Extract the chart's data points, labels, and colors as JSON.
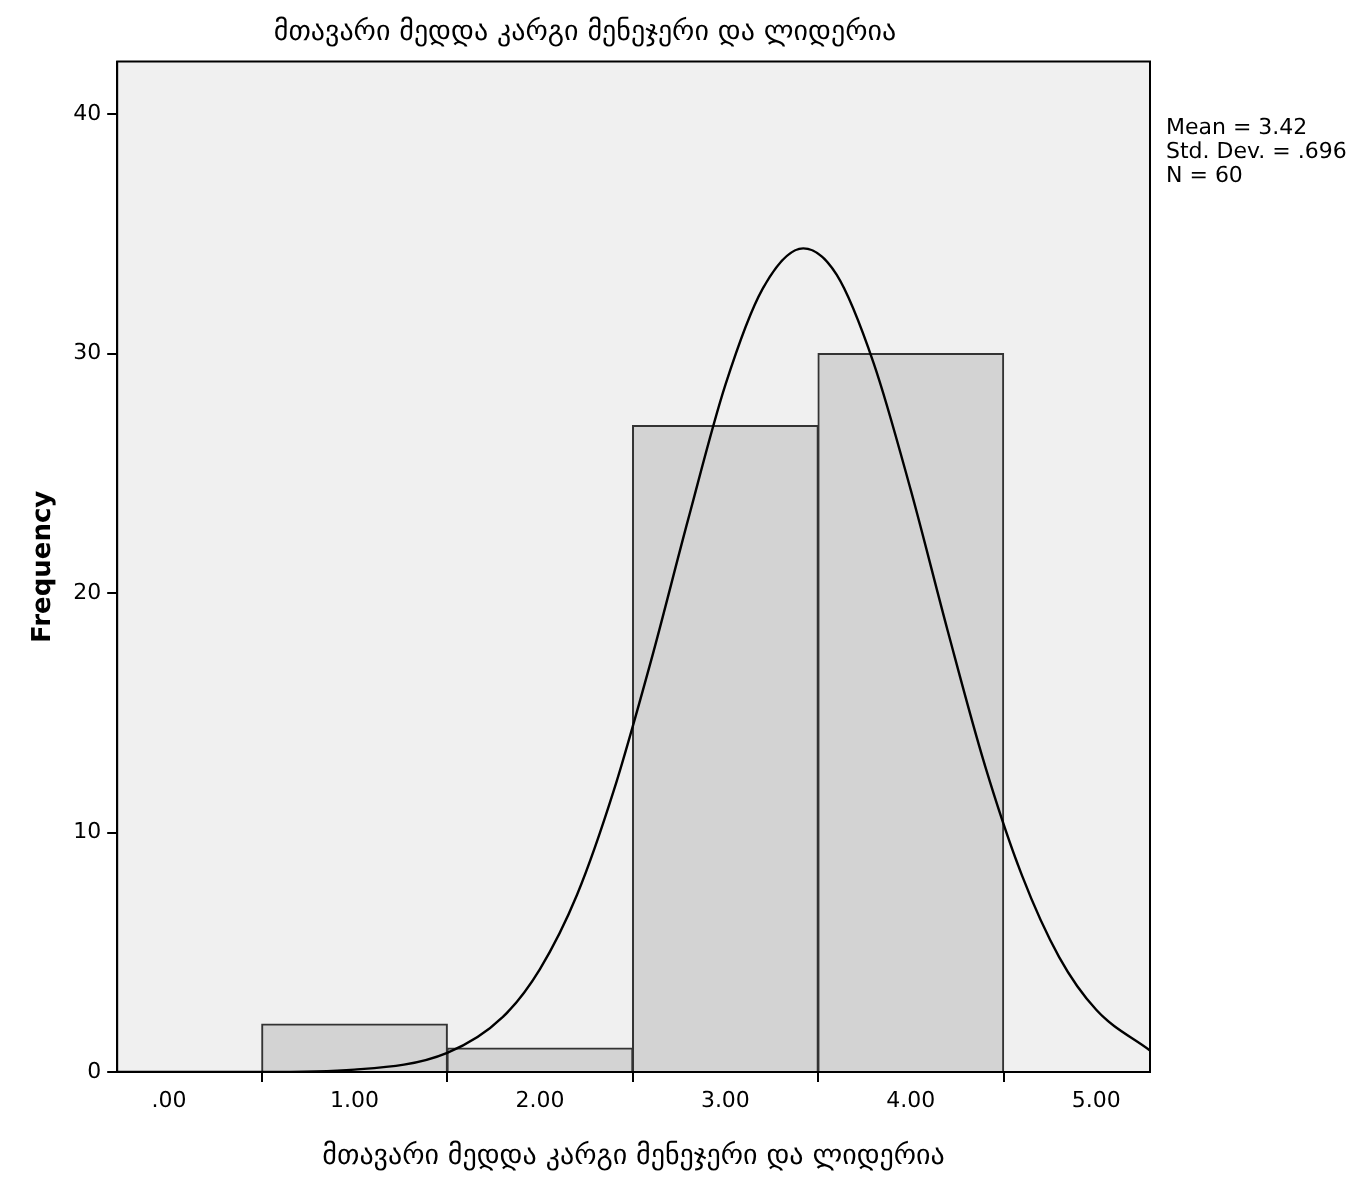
{
  "chart_data": {
    "type": "histogram",
    "title": "მთავარი მედდა კარგი მენეჯერი და ლიდერია",
    "xlabel": "მთავარი მედდა კარგი მენეჯერი და ლიდერია",
    "ylabel": "Frequency",
    "bins": [
      0.5,
      1.5,
      2.5,
      3.5,
      4.5
    ],
    "values": [
      2,
      1,
      27,
      30
    ],
    "color": "#d3d3d3",
    "series": [
      {
        "type": "line",
        "color": "#000000",
        "x": [
          -0.28,
          0.5,
          1.0,
          1.5,
          1.8,
          2.0,
          2.2,
          2.4,
          2.6,
          2.8,
          3.0,
          3.2,
          3.42,
          3.6,
          3.8,
          4.0,
          4.2,
          4.4,
          4.6,
          4.8,
          5.0,
          5.29
        ],
        "values": [
          0,
          0,
          0.1,
          0.8,
          2.3,
          4.3,
          7.4,
          11.8,
          17.2,
          23.1,
          28.7,
          32.7,
          34.4,
          33.3,
          29.6,
          24.3,
          18.4,
          12.8,
          8.2,
          4.8,
          2.6,
          0.9
        ]
      }
    ],
    "xlim": [
      -0.28,
      5.29
    ],
    "xticks": [
      {
        "value": 0,
        "label": ".00"
      },
      {
        "value": 1,
        "label": "1.00"
      },
      {
        "value": 2,
        "label": "2.00"
      },
      {
        "value": 3,
        "label": "3.00"
      },
      {
        "value": 4,
        "label": "4.00"
      },
      {
        "value": 5,
        "label": "5.00"
      }
    ],
    "ylim": [
      0,
      42.2
    ],
    "yticks": [
      0,
      10,
      20,
      30,
      40
    ],
    "annotations": [
      "Mean = 3.42",
      "Std. Dev. = .696",
      "N = 60"
    ],
    "grid": false,
    "legend": false,
    "marker": "none",
    "line_style": "solid"
  }
}
